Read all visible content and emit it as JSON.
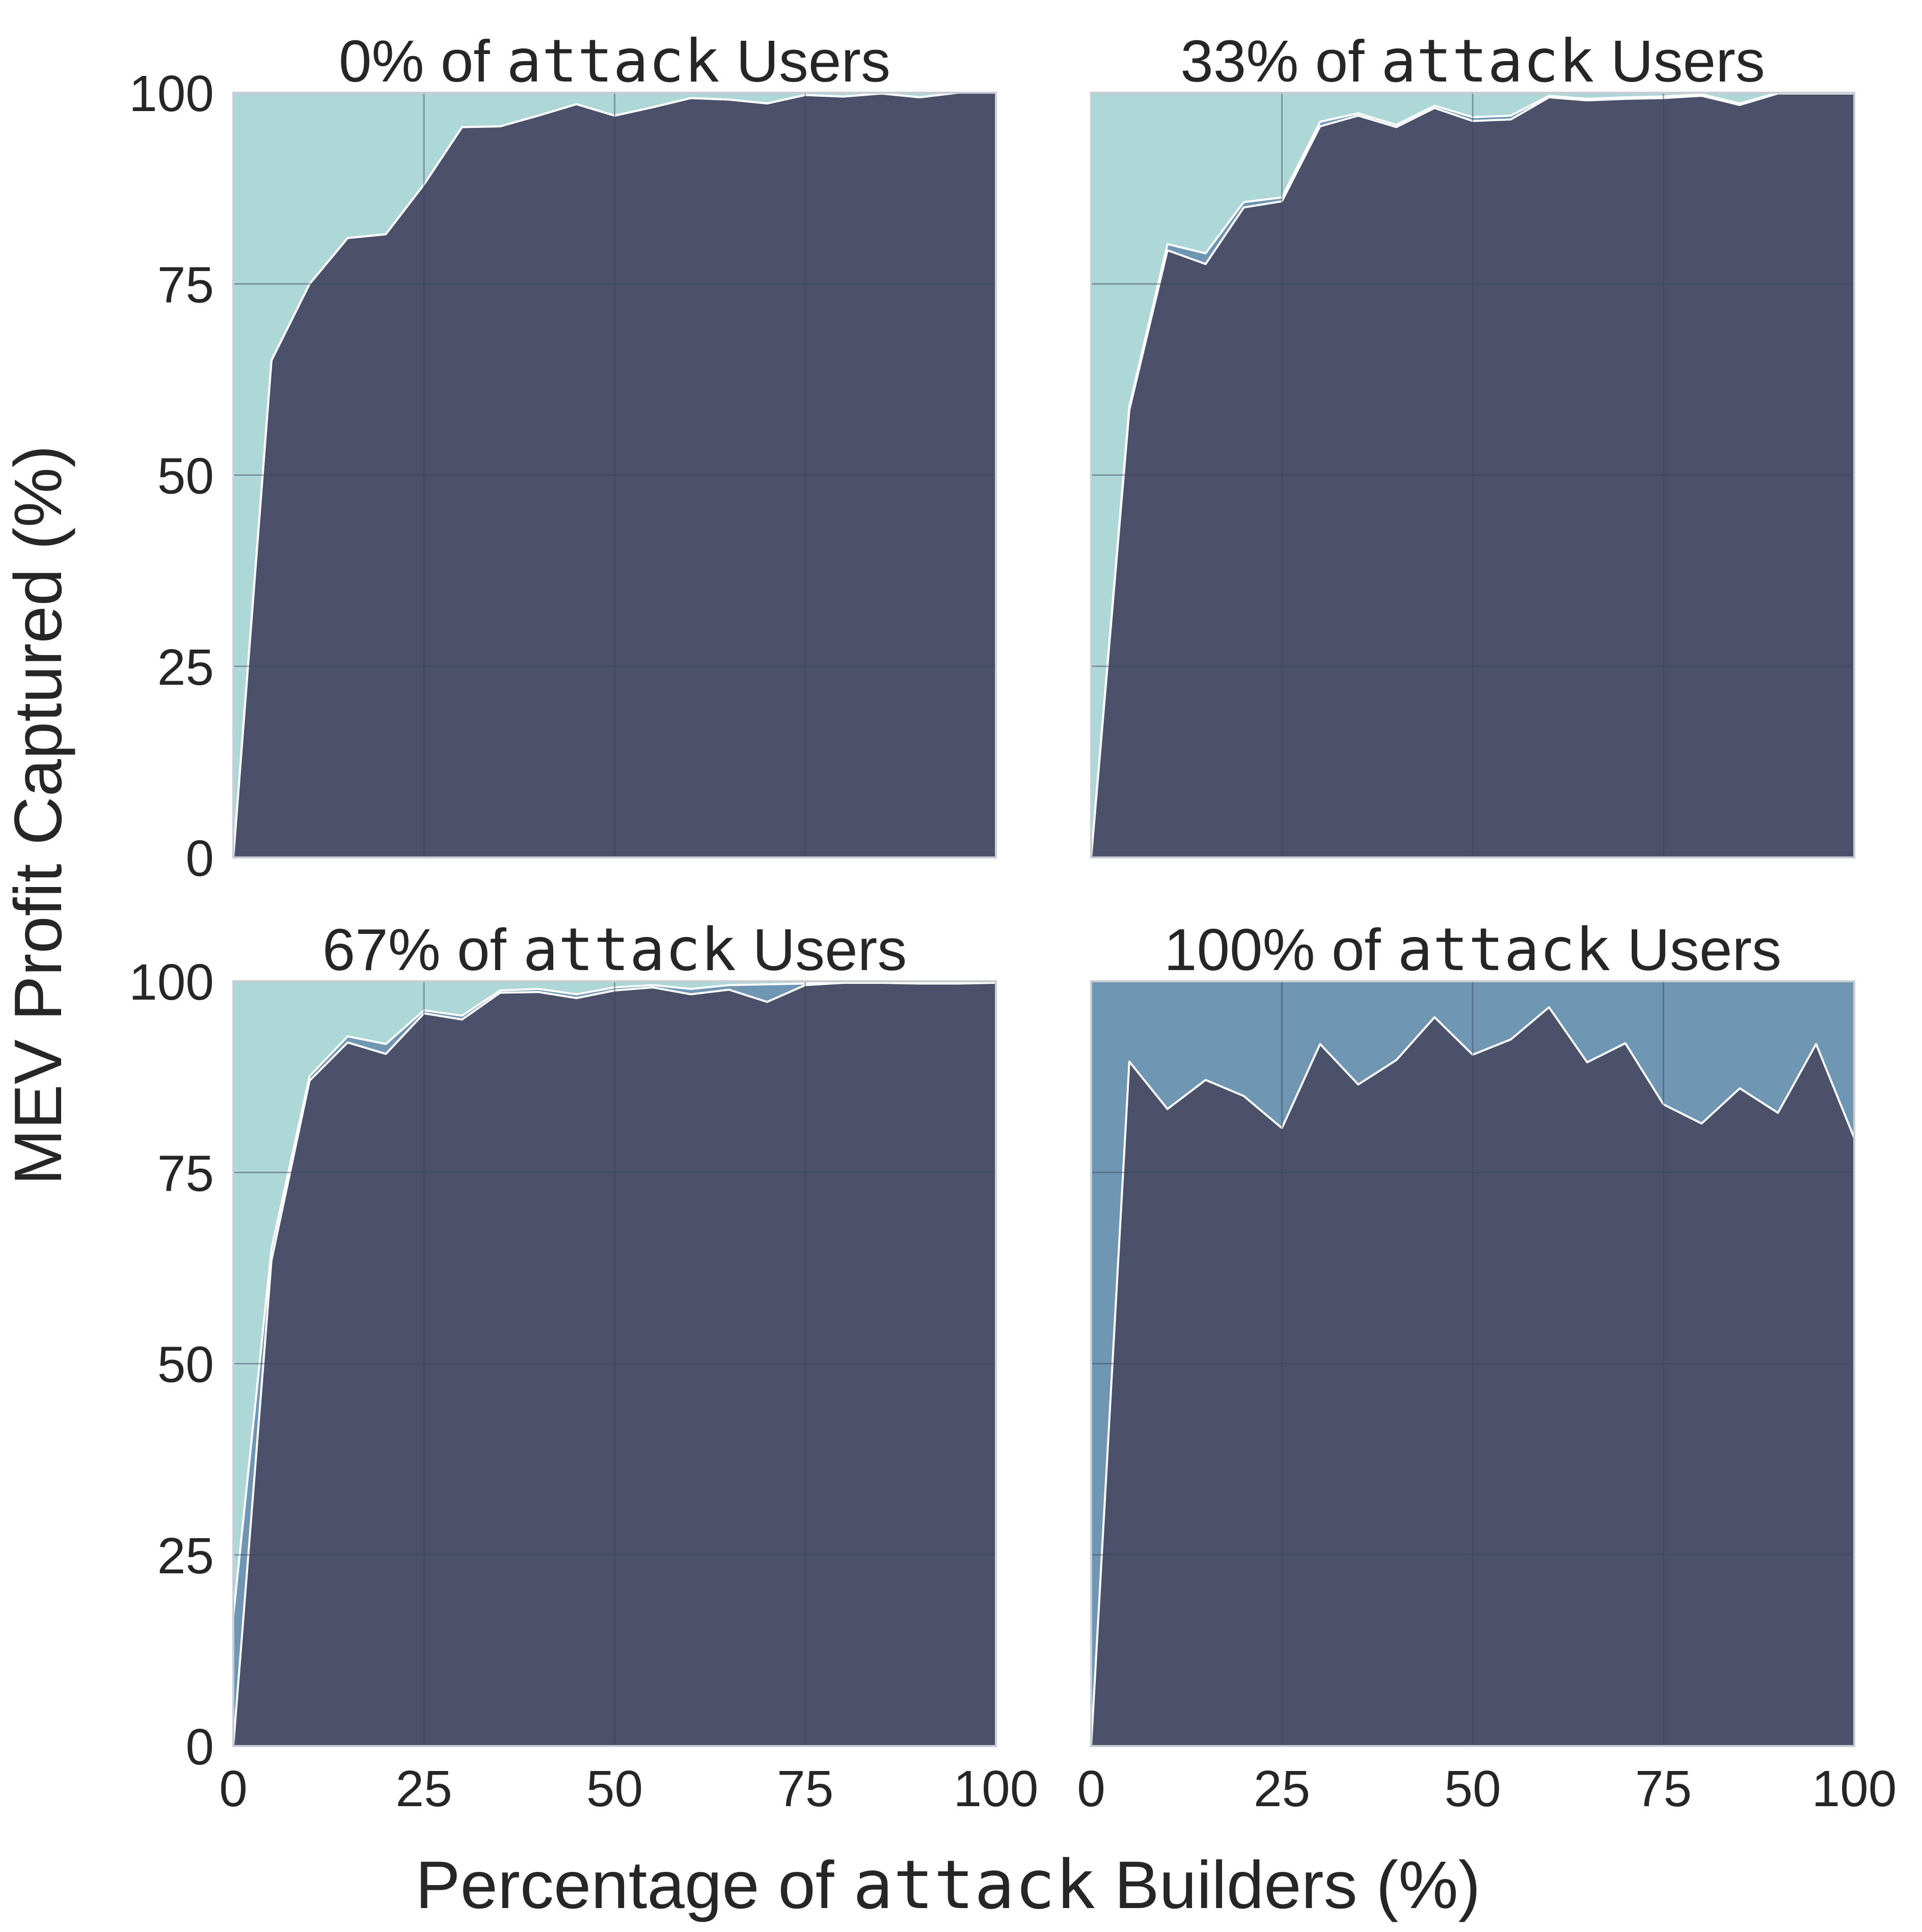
{
  "chart_data": {
    "type": "area",
    "layout": "2x2 grid",
    "xlabel": {
      "before": "Percentage of ",
      "code": "attack",
      "after": " Builders (%)"
    },
    "ylabel": "MEV Profit Captured (%)",
    "xlim": [
      0,
      100
    ],
    "ylim": [
      0,
      100
    ],
    "x_ticks": [
      "0",
      "25",
      "50",
      "75",
      "100"
    ],
    "y_ticks": [
      "0",
      "25",
      "50",
      "75",
      "100"
    ],
    "grid": true,
    "colors": {
      "bottom_layer": "#4a5169",
      "middle_layer": "#6f96b2",
      "top_layer": "#aed8d8",
      "boundary_line": "#ffffff",
      "grid": "#3c4258",
      "axis": "#c8ccd4",
      "text": "#262626"
    },
    "x": [
      0,
      5,
      10,
      15,
      20,
      25,
      30,
      35,
      40,
      45,
      50,
      55,
      60,
      65,
      70,
      75,
      80,
      85,
      90,
      95,
      100
    ],
    "panels": [
      {
        "title": {
          "before": "0% of ",
          "code": "attack",
          "after": " Users"
        },
        "series": [
          {
            "values": [
              0,
              65,
              75,
              81,
              81.5,
              88,
              95.5,
              95.6,
              97,
              98.5,
              97,
              98.1,
              99.3,
              99.1,
              98.6,
              99.7,
              99.5,
              99.9,
              99.4,
              100,
              100
            ]
          },
          {
            "values": [
              0,
              65,
              75,
              81,
              81.5,
              88,
              95.5,
              95.6,
              97,
              98.5,
              97,
              98.1,
              99.3,
              99.1,
              98.6,
              99.7,
              99.5,
              99.9,
              99.4,
              100,
              100
            ]
          },
          {
            "values": [
              100,
              100,
              100,
              100,
              100,
              100,
              100,
              100,
              100,
              100,
              100,
              100,
              100,
              100,
              100,
              100,
              100,
              100,
              100,
              100,
              100
            ]
          }
        ]
      },
      {
        "title": {
          "before": "33% of ",
          "code": "attack",
          "after": " Users"
        },
        "series": [
          {
            "values": [
              0,
              58.5,
              79.4,
              77.6,
              85,
              85.8,
              95.6,
              97,
              95.5,
              98,
              96.3,
              96.5,
              99.4,
              99,
              99.2,
              99.3,
              99.6,
              98.4,
              99.9,
              99.9,
              99.9
            ]
          },
          {
            "values": [
              0,
              59,
              80.2,
              79,
              85.7,
              86.3,
              96.2,
              97.3,
              95.8,
              98.3,
              96.8,
              97,
              99.6,
              99.2,
              99.4,
              99.5,
              99.8,
              98.6,
              100,
              100,
              100
            ]
          },
          {
            "values": [
              100,
              100,
              100,
              100,
              100,
              100,
              100,
              100,
              100,
              100,
              100,
              100,
              100,
              100,
              100,
              100,
              100,
              100,
              100,
              100,
              100
            ]
          }
        ]
      },
      {
        "title": {
          "before": "67% of ",
          "code": "attack",
          "after": " Users"
        },
        "series": [
          {
            "values": [
              0,
              63.5,
              87,
              92,
              90.5,
              95.8,
              95,
              98.5,
              98.6,
              97.8,
              98.8,
              99.2,
              98.3,
              98.9,
              97.3,
              99.5,
              99.8,
              99.8,
              99.7,
              99.7,
              99.8
            ]
          },
          {
            "values": [
              17,
              65,
              87.6,
              92.8,
              91.8,
              96.2,
              95.5,
              98.8,
              99,
              98.3,
              99.2,
              99.5,
              99,
              99.5,
              99.6,
              99.7,
              99.9,
              99.9,
              99.8,
              99.8,
              99.9
            ]
          },
          {
            "values": [
              100,
              100,
              100,
              100,
              100,
              100,
              100,
              100,
              100,
              100,
              100,
              100,
              100,
              100,
              100,
              100,
              100,
              100,
              100,
              100,
              100
            ]
          }
        ]
      },
      {
        "title": {
          "before": "100% of ",
          "code": "attack",
          "after": " Users"
        },
        "series": [
          {
            "values": [
              0,
              89.5,
              83.3,
              87.1,
              85,
              80.8,
              91.8,
              86.5,
              89.7,
              95.3,
              90.4,
              92.4,
              96.6,
              89.4,
              91.9,
              83.9,
              81.4,
              86,
              82.8,
              91.8,
              79.5
            ]
          },
          {
            "values": [
              100,
              100,
              100,
              100,
              100,
              100,
              100,
              100,
              100,
              100,
              100,
              100,
              100,
              100,
              100,
              100,
              100,
              100,
              100,
              100,
              100
            ]
          },
          {
            "values": [
              100,
              100,
              100,
              100,
              100,
              100,
              100,
              100,
              100,
              100,
              100,
              100,
              100,
              100,
              100,
              100,
              100,
              100,
              100,
              100,
              100
            ]
          }
        ]
      }
    ]
  }
}
